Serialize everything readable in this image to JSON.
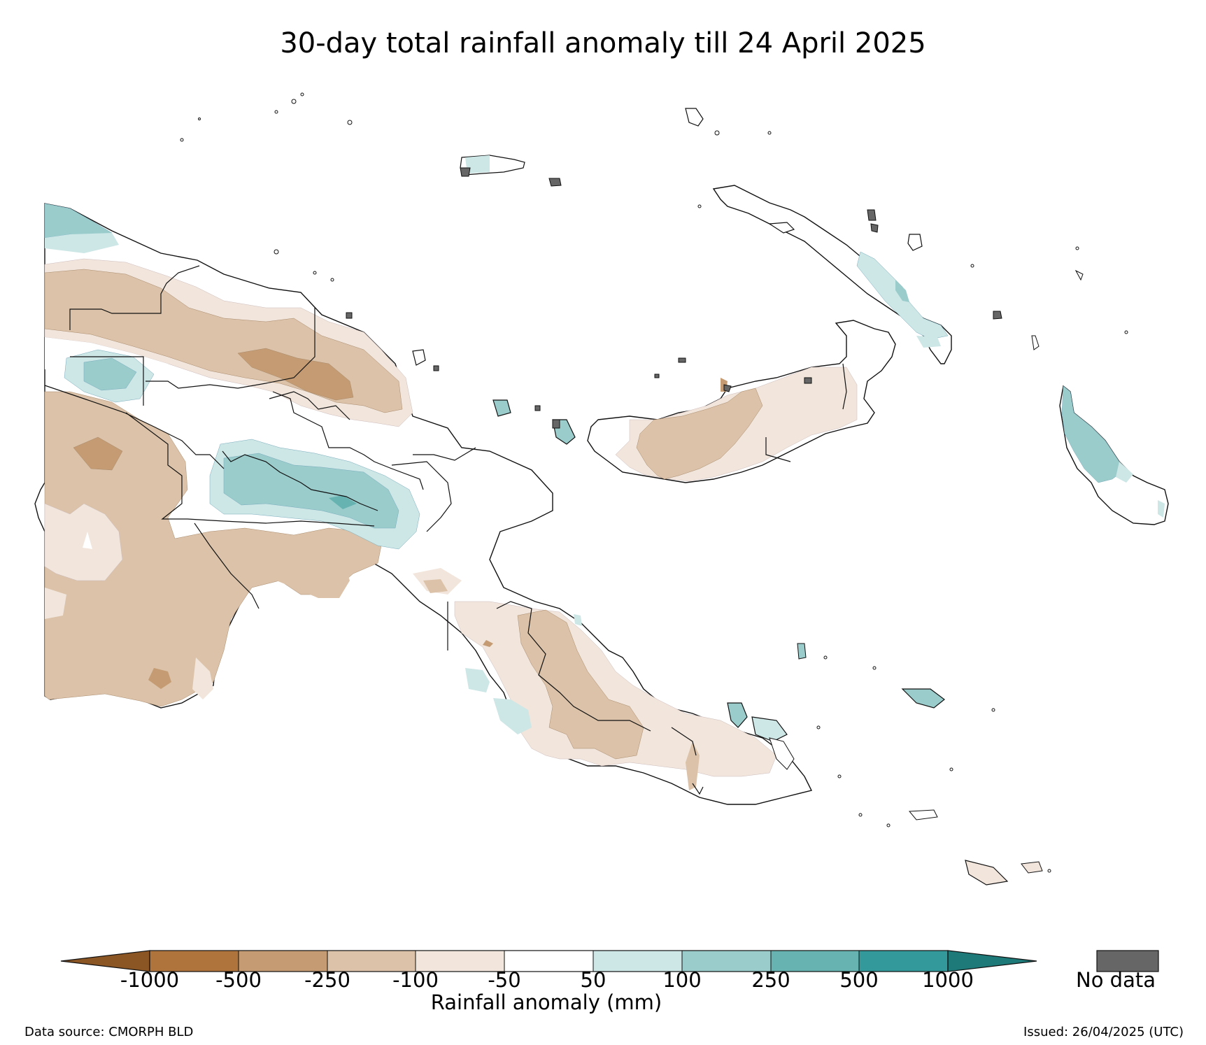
{
  "title": "30-day total rainfall anomaly till 24 April 2025",
  "legend": {
    "axis_label": "Rainfall anomaly (mm)",
    "tick_labels": [
      "-1000",
      "-500",
      "-250",
      "-100",
      "-50",
      "50",
      "100",
      "250",
      "500",
      "1000"
    ],
    "bins": [
      {
        "range": "< -1000",
        "color": "#8c5524"
      },
      {
        "range": "-1000 to -500",
        "color": "#ae743c"
      },
      {
        "range": "-500 to -250",
        "color": "#c49b72"
      },
      {
        "range": "-250 to -100",
        "color": "#dbc2a8"
      },
      {
        "range": "-100 to -50",
        "color": "#f1e5dc"
      },
      {
        "range": "-50 to 50",
        "color": "#ffffff"
      },
      {
        "range": "50 to 100",
        "color": "#cde6e6"
      },
      {
        "range": "100 to 250",
        "color": "#9acccc"
      },
      {
        "range": "250 to 500",
        "color": "#66b3b1"
      },
      {
        "range": "500 to 1000",
        "color": "#33999a"
      },
      {
        "range": "> 1000",
        "color": "#1d7a78"
      }
    ],
    "no_data_label": "No data",
    "no_data_color": "#666666"
  },
  "footer": {
    "source": "Data source: CMORPH BLD",
    "issued": "Issued: 26/04/2025 (UTC)"
  }
}
